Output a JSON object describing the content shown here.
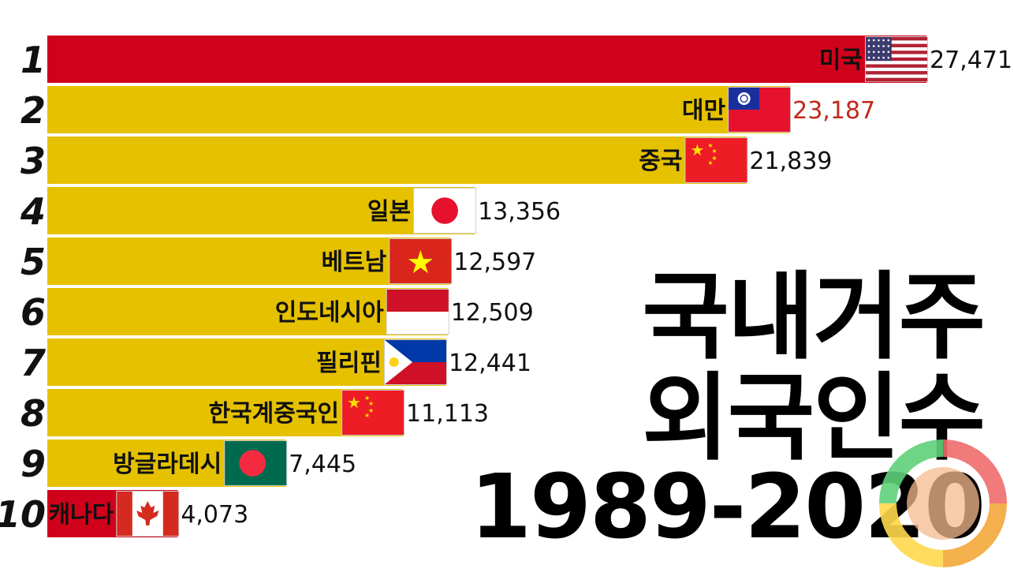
{
  "title": {
    "line1": "국내거주",
    "line2": "외국인수",
    "years": "1989-2020"
  },
  "chart_data": {
    "type": "bar",
    "orientation": "horizontal",
    "ranks": [
      "1",
      "2",
      "3",
      "4",
      "5",
      "6",
      "7",
      "8",
      "9",
      "10"
    ],
    "categories": [
      "미국",
      "대만",
      "중국",
      "일본",
      "베트남",
      "인도네시아",
      "필리핀",
      "한국계중국인",
      "방글라데시",
      "캐나다"
    ],
    "values": [
      27471,
      23187,
      21839,
      13356,
      12597,
      12509,
      12441,
      11113,
      7445,
      4073
    ],
    "value_labels": [
      "27,471",
      "23,187",
      "21,839",
      "13,356",
      "12,597",
      "12,509",
      "12,441",
      "11,113",
      "7,445",
      "4,073"
    ],
    "flags": [
      "usa-flag",
      "taiwan-flag",
      "china-flag",
      "japan-flag",
      "vietnam-flag",
      "indonesia-flag",
      "philippines-flag",
      "china-flag",
      "bangladesh-flag",
      "canada-flag"
    ],
    "bar_colors": [
      "#d0021b",
      "#e5c100",
      "#e5c100",
      "#e5c100",
      "#e5c100",
      "#e5c100",
      "#e5c100",
      "#e5c100",
      "#e5c100",
      "#d0021b"
    ],
    "value_colors": [
      "#111111",
      "#c0281b",
      "#111111",
      "#111111",
      "#111111",
      "#111111",
      "#111111",
      "#111111",
      "#111111",
      "#111111"
    ],
    "xlim": [
      0,
      27471
    ],
    "grid": false,
    "legend": "none"
  },
  "logo": "circular-logo"
}
